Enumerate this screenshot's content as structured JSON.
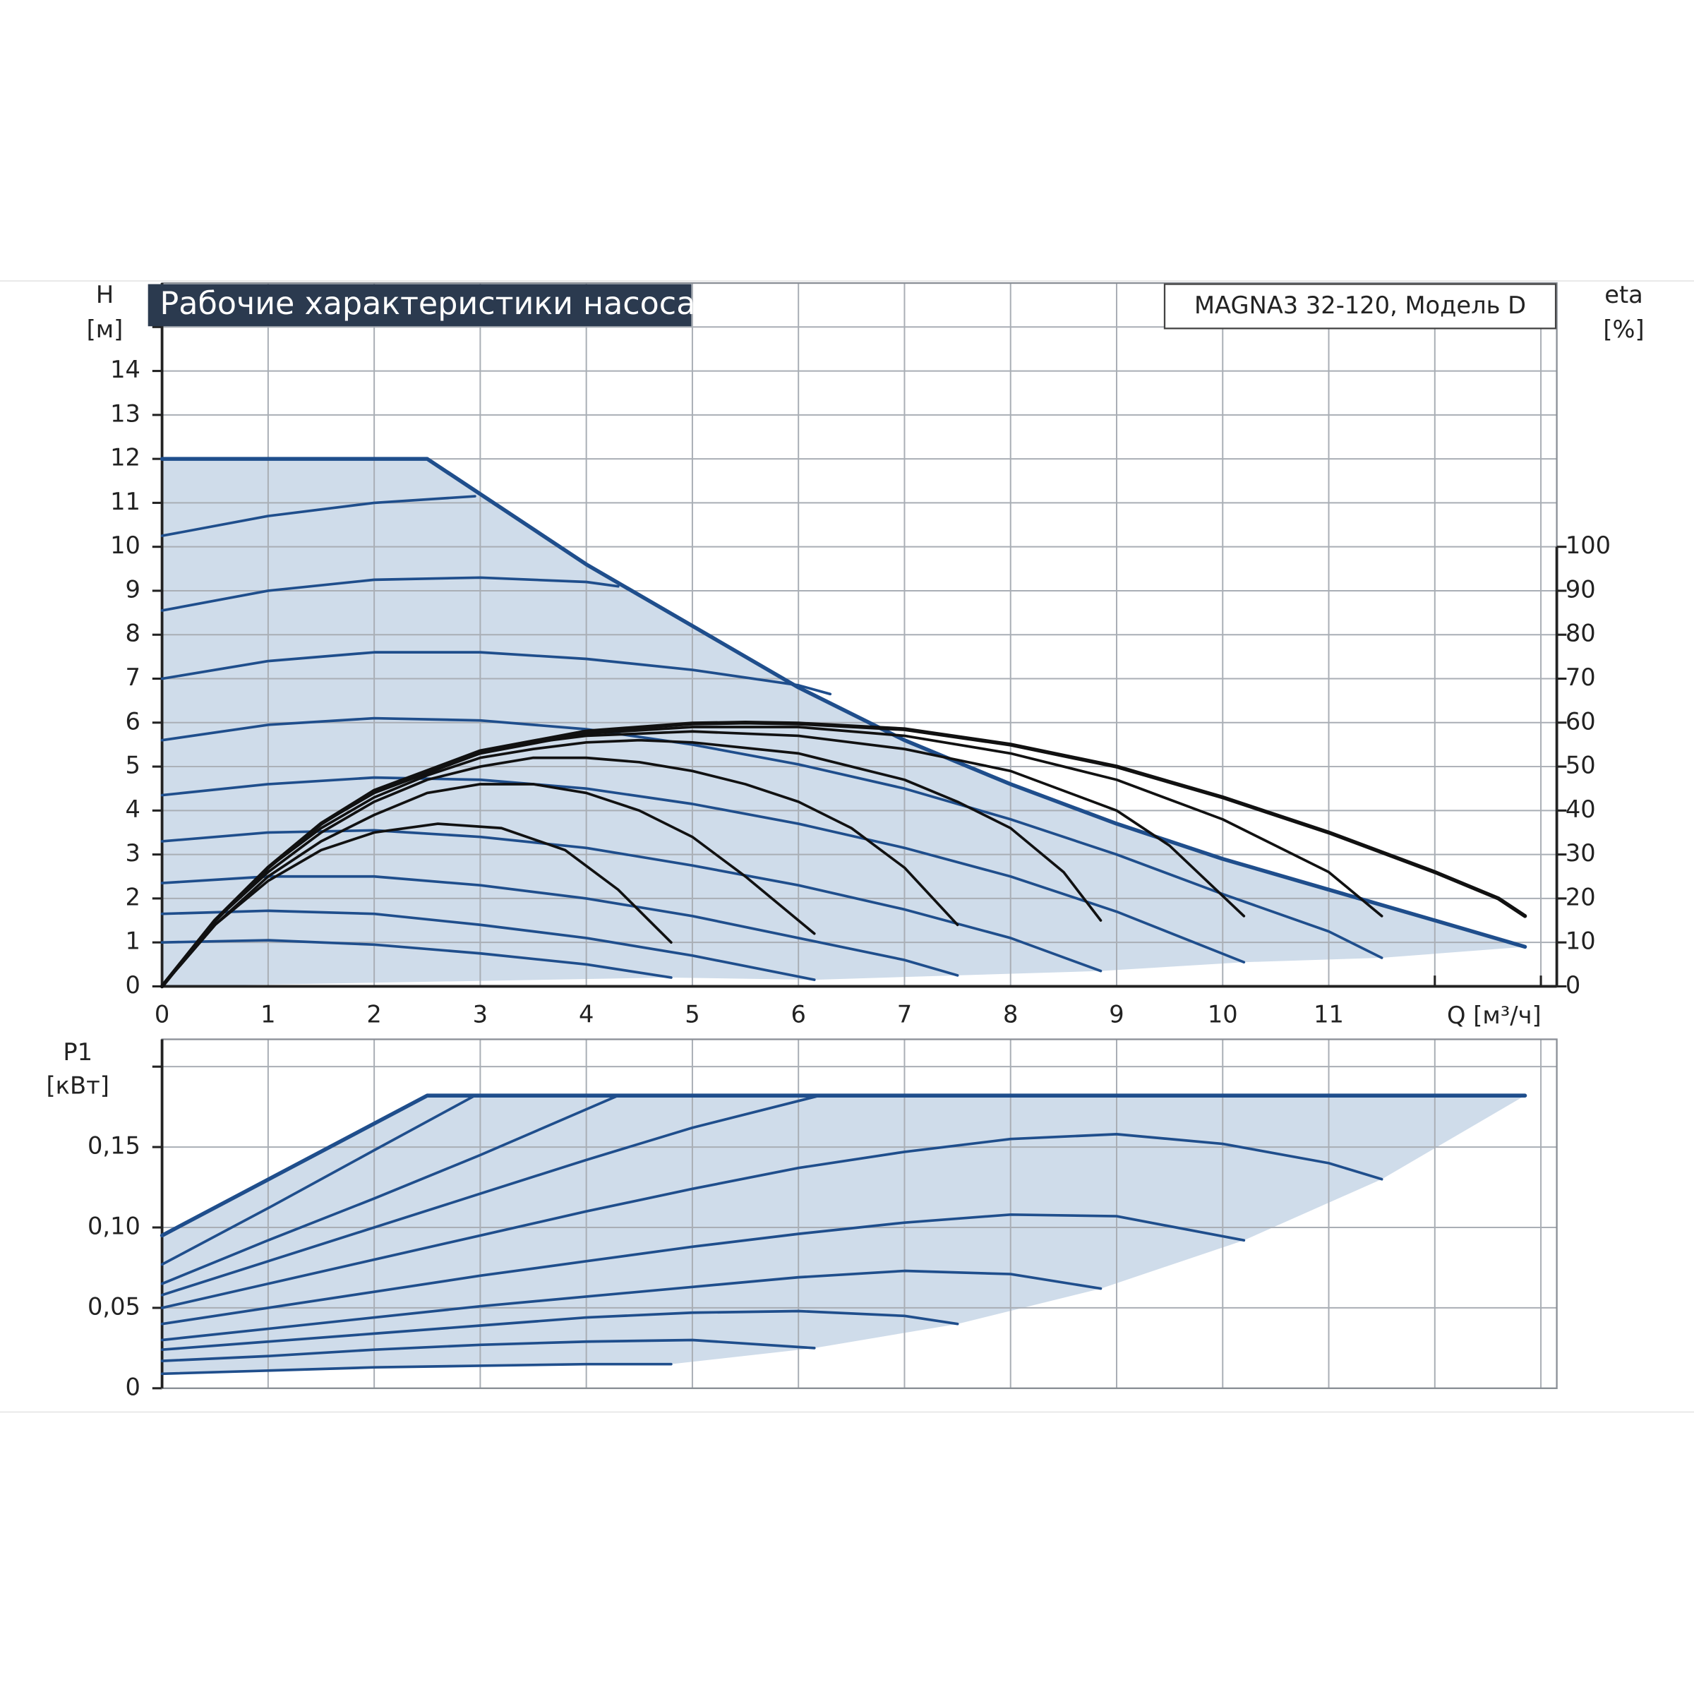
{
  "header": {
    "title": "Рабочие характеристики насоса",
    "model": "MAGNA3 32-120, Модель D"
  },
  "chart_data": [
    {
      "type": "line",
      "ylabel": "H",
      "yunit": "[м]",
      "y2label": "eta",
      "y2unit": "[%]",
      "xlabel": "Q [м³/ч]",
      "xlim": [
        0,
        13.15
      ],
      "xticks": [
        0,
        1,
        2,
        3,
        4,
        5,
        6,
        7,
        8,
        9,
        10,
        11
      ],
      "minor_xgrid": [
        12,
        13
      ],
      "ylim": [
        0,
        16
      ],
      "yticks": [
        0,
        1,
        2,
        3,
        4,
        5,
        6,
        7,
        8,
        9,
        10,
        11,
        12,
        13,
        14
      ],
      "minor_ygrid": [
        15
      ],
      "y2lim": [
        0,
        160
      ],
      "y2ticks": [
        0,
        10,
        20,
        30,
        40,
        50,
        60,
        70,
        80,
        90,
        100
      ],
      "grid": true,
      "area_color": "#cfdcea",
      "area_to_axis": true,
      "series": [
        {
          "color": "#1f4e8c",
          "x": [
            0,
            2.5,
            3,
            4,
            5,
            6,
            7,
            8,
            9,
            10,
            11,
            12,
            12.85
          ],
          "values": [
            12,
            12,
            11.2,
            9.6,
            8.2,
            6.8,
            5.6,
            4.6,
            3.7,
            2.9,
            2.2,
            1.5,
            0.9
          ]
        },
        {
          "color": "#1f4e8c",
          "x": [
            0,
            1,
            2,
            2.95
          ],
          "values": [
            10.25,
            10.7,
            11.0,
            11.15
          ]
        },
        {
          "color": "#1f4e8c",
          "x": [
            0,
            1,
            2,
            3,
            4,
            4.3
          ],
          "values": [
            8.55,
            9.0,
            9.25,
            9.3,
            9.2,
            9.1
          ]
        },
        {
          "color": "#1f4e8c",
          "x": [
            0,
            1,
            2,
            3,
            4,
            5,
            6,
            6.3
          ],
          "values": [
            7.0,
            7.4,
            7.6,
            7.6,
            7.45,
            7.2,
            6.85,
            6.65
          ]
        },
        {
          "color": "#1f4e8c",
          "x": [
            0,
            1,
            2,
            3,
            4,
            5,
            6,
            7,
            8,
            9,
            10,
            11,
            11.5
          ],
          "values": [
            5.6,
            5.95,
            6.1,
            6.05,
            5.85,
            5.5,
            5.05,
            4.5,
            3.8,
            3.0,
            2.1,
            1.25,
            0.65
          ]
        },
        {
          "color": "#1f4e8c",
          "x": [
            0,
            1,
            2,
            3,
            4,
            5,
            6,
            7,
            8,
            9,
            10.2
          ],
          "values": [
            4.35,
            4.6,
            4.75,
            4.7,
            4.5,
            4.15,
            3.7,
            3.15,
            2.5,
            1.7,
            0.55
          ]
        },
        {
          "color": "#1f4e8c",
          "x": [
            0,
            1,
            2,
            3,
            4,
            5,
            6,
            7,
            8,
            8.85
          ],
          "values": [
            3.3,
            3.5,
            3.55,
            3.4,
            3.15,
            2.75,
            2.3,
            1.75,
            1.1,
            0.35
          ]
        },
        {
          "color": "#1f4e8c",
          "x": [
            0,
            1,
            2,
            3,
            4,
            5,
            6,
            7,
            7.5
          ],
          "values": [
            2.35,
            2.5,
            2.5,
            2.3,
            2.0,
            1.6,
            1.1,
            0.6,
            0.25
          ]
        },
        {
          "color": "#1f4e8c",
          "x": [
            0,
            1,
            2,
            3,
            4,
            5,
            6.15
          ],
          "values": [
            1.65,
            1.72,
            1.65,
            1.4,
            1.1,
            0.7,
            0.15
          ]
        },
        {
          "color": "#1f4e8c",
          "x": [
            0,
            1,
            2,
            3,
            4,
            4.8
          ],
          "values": [
            1.0,
            1.05,
            0.95,
            0.75,
            0.5,
            0.2
          ]
        },
        {
          "color": "#111111",
          "axis": "y2",
          "x": [
            0,
            0.5,
            1,
            1.5,
            2,
            2.6,
            3.2,
            3.8,
            4.3,
            4.8
          ],
          "values": [
            0,
            14,
            24,
            31,
            35,
            37,
            36,
            31,
            22,
            10
          ]
        },
        {
          "color": "#111111",
          "axis": "y2",
          "x": [
            0,
            0.5,
            1,
            1.5,
            2,
            2.5,
            3,
            3.5,
            4,
            4.5,
            5,
            5.5,
            6.15
          ],
          "values": [
            0,
            14,
            25,
            33,
            39,
            44,
            46,
            46,
            44,
            40,
            34,
            25,
            12
          ]
        },
        {
          "color": "#111111",
          "axis": "y2",
          "x": [
            0,
            0.5,
            1,
            1.5,
            2,
            2.5,
            3,
            3.5,
            4,
            4.5,
            5,
            5.5,
            6,
            6.5,
            7,
            7.5
          ],
          "values": [
            0,
            15,
            26,
            35,
            42,
            47,
            50,
            52,
            52,
            51,
            49,
            46,
            42,
            36,
            27,
            14
          ]
        },
        {
          "color": "#111111",
          "axis": "y2",
          "x": [
            0,
            0.5,
            1,
            1.5,
            2,
            2.5,
            3,
            3.5,
            4,
            4.5,
            5,
            6,
            7,
            7.5,
            8,
            8.5,
            8.85
          ],
          "values": [
            0,
            15,
            27,
            36,
            43,
            48,
            52,
            54,
            55.5,
            56,
            55.5,
            53,
            47,
            42,
            36,
            26,
            15
          ]
        },
        {
          "color": "#111111",
          "axis": "y2",
          "x": [
            0,
            0.5,
            1,
            1.5,
            2,
            2.5,
            3,
            3.5,
            4,
            5,
            6,
            7,
            8,
            9,
            9.5,
            10.2
          ],
          "values": [
            0,
            15,
            27,
            37,
            44,
            49,
            53,
            55.5,
            57,
            58,
            57,
            54,
            49,
            40,
            32,
            16
          ]
        },
        {
          "color": "#111111",
          "axis": "y2",
          "x": [
            0,
            0.5,
            1,
            1.5,
            2,
            3,
            4,
            5,
            6,
            7,
            8,
            9,
            10,
            11,
            11.5
          ],
          "values": [
            0,
            15,
            27,
            37,
            44,
            53,
            57.5,
            59,
            59,
            57,
            53,
            47,
            38,
            26,
            16
          ]
        },
        {
          "color": "#111111",
          "axis": "y2",
          "x": [
            0,
            0.5,
            1,
            1.5,
            2,
            3,
            4,
            5,
            5.5,
            6,
            7,
            8,
            9,
            10,
            11,
            12,
            12.6,
            12.85
          ],
          "values": [
            0,
            15,
            27,
            37,
            44.5,
            53.5,
            58,
            59.8,
            60,
            59.8,
            58.5,
            55,
            50,
            43,
            35,
            26,
            20,
            16
          ]
        }
      ]
    },
    {
      "type": "line",
      "ylabel": "P1",
      "yunit": "[кВт]",
      "xlim": [
        0,
        13.15
      ],
      "xgrid": [
        1,
        2,
        3,
        4,
        5,
        6,
        7,
        8,
        9,
        10,
        11,
        12,
        13
      ],
      "ylim": [
        0,
        0.217
      ],
      "yticks": [
        0,
        {
          "value": 0.05,
          "label": "0,05"
        },
        {
          "value": 0.1,
          "label": "0,10"
        },
        {
          "value": 0.15,
          "label": "0,15"
        }
      ],
      "minor_ygrid": [
        0.2
      ],
      "grid": true,
      "area_color": "#cfdcea",
      "area_to_axis": false,
      "series": [
        {
          "color": "#1f4e8c",
          "x": [
            0,
            2.5,
            12.85
          ],
          "values": [
            0.095,
            0.182,
            0.182
          ]
        },
        {
          "color": "#1f4e8c",
          "x": [
            0,
            1,
            2,
            2.95
          ],
          "values": [
            0.077,
            0.112,
            0.148,
            0.182
          ]
        },
        {
          "color": "#1f4e8c",
          "x": [
            0,
            1,
            2,
            3,
            4.3
          ],
          "values": [
            0.065,
            0.092,
            0.118,
            0.145,
            0.182
          ]
        },
        {
          "color": "#1f4e8c",
          "x": [
            0,
            1,
            2,
            3,
            4,
            5,
            6.2
          ],
          "values": [
            0.058,
            0.079,
            0.1,
            0.121,
            0.142,
            0.162,
            0.182
          ]
        },
        {
          "color": "#1f4e8c",
          "x": [
            0,
            1,
            2,
            3,
            4,
            5,
            6,
            7,
            8,
            9,
            10,
            11,
            11.5
          ],
          "values": [
            0.05,
            0.065,
            0.08,
            0.095,
            0.11,
            0.124,
            0.137,
            0.147,
            0.155,
            0.158,
            0.152,
            0.14,
            0.13
          ]
        },
        {
          "color": "#1f4e8c",
          "x": [
            0,
            1,
            2,
            3,
            4,
            5,
            6,
            7,
            8,
            9,
            10.2
          ],
          "values": [
            0.04,
            0.05,
            0.06,
            0.07,
            0.079,
            0.088,
            0.096,
            0.103,
            0.108,
            0.107,
            0.092
          ]
        },
        {
          "color": "#1f4e8c",
          "x": [
            0,
            1,
            2,
            3,
            4,
            5,
            6,
            7,
            8,
            8.85
          ],
          "values": [
            0.03,
            0.037,
            0.044,
            0.051,
            0.057,
            0.063,
            0.069,
            0.073,
            0.071,
            0.062
          ]
        },
        {
          "color": "#1f4e8c",
          "x": [
            0,
            1,
            2,
            3,
            4,
            5,
            6,
            7,
            7.5
          ],
          "values": [
            0.024,
            0.029,
            0.034,
            0.039,
            0.044,
            0.047,
            0.048,
            0.045,
            0.04
          ]
        },
        {
          "color": "#1f4e8c",
          "x": [
            0,
            1,
            2,
            3,
            4,
            5,
            6.15
          ],
          "values": [
            0.017,
            0.02,
            0.024,
            0.027,
            0.029,
            0.03,
            0.025
          ]
        },
        {
          "color": "#1f4e8c",
          "x": [
            0,
            1,
            2,
            3,
            4,
            4.8
          ],
          "values": [
            0.009,
            0.011,
            0.013,
            0.014,
            0.015,
            0.015
          ]
        }
      ]
    }
  ]
}
